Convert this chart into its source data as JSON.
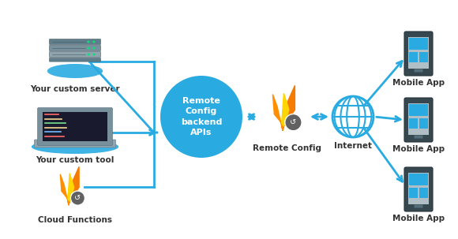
{
  "bg_color": "#ffffff",
  "blue": "#29abe2",
  "dark_phone": "#37474f",
  "mid_phone": "#546e7a",
  "screen_gray": "#b0bec5",
  "tile_blue": "#29abe2",
  "flame_orange": "#f4a623",
  "flame_yellow": "#ffd600",
  "flame_amber": "#ffab00",
  "circle_gray": "#616161",
  "server_dark": "#546e7a",
  "server_mid": "#78909c",
  "server_light": "#90a4ae",
  "label_fontsize": 7.5,
  "labels": {
    "custom_server": "Your custom server",
    "custom_tool": "Your custom tool",
    "cloud_functions": "Cloud Functions",
    "remote_config": "Remote Config",
    "internet": "Internet",
    "mobile_app": "Mobile App"
  }
}
